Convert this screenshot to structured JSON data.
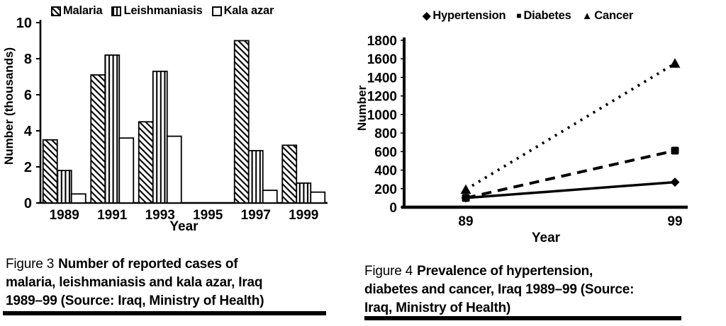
{
  "page": {
    "background": "#ffffff",
    "ink": "#000000"
  },
  "figure3": {
    "label": "Figure 3",
    "caption_line1": "Number of reported cases of",
    "caption_line2": "malaria, leishmaniasis and kala azar, Iraq",
    "caption_line3": "1989–99 (Source: Iraq, Ministry of Health)"
  },
  "figure4": {
    "label": "Figure 4",
    "caption_line1": "Prevalence of hypertension,",
    "caption_line2": "diabetes and cancer, Iraq 1989–99 (Source:",
    "caption_line3": "Iraq, Ministry of Health)"
  },
  "chart_data": [
    {
      "type": "bar",
      "title": "Number of reported cases of malaria, leishmaniasis and kala azar, Iraq 1989–99",
      "categories": [
        "1989",
        "1991",
        "1993",
        "1995",
        "1997",
        "1999"
      ],
      "series": [
        {
          "name": "Malaria",
          "pattern": "diagonal-hatch",
          "values": [
            3.5,
            7.1,
            4.5,
            null,
            9.0,
            3.2
          ]
        },
        {
          "name": "Leishmaniasis",
          "pattern": "vertical-lines",
          "values": [
            1.8,
            8.2,
            7.3,
            null,
            2.9,
            1.1
          ]
        },
        {
          "name": "Kala azar",
          "pattern": "none",
          "values": [
            0.5,
            3.6,
            3.7,
            null,
            0.7,
            0.6
          ]
        }
      ],
      "xlabel": "Year",
      "ylabel": "Number (thousands)",
      "ylim": [
        0,
        10
      ],
      "ytick_step": 2,
      "legend_position": "top",
      "grid": false
    },
    {
      "type": "line",
      "title": "Prevalence of hypertension, diabetes and cancer, Iraq 1989–99",
      "categories": [
        "89",
        "99"
      ],
      "series": [
        {
          "name": "Hypertension",
          "marker": "diamond",
          "marker_glyph": "◆",
          "line_style": "solid",
          "values": [
            100,
            270
          ]
        },
        {
          "name": "Diabetes",
          "marker": "square",
          "marker_glyph": "■",
          "line_style": "dashed",
          "values": [
            100,
            610
          ]
        },
        {
          "name": "Cancer",
          "marker": "triangle",
          "marker_glyph": "▲",
          "line_style": "dotted",
          "values": [
            190,
            1550
          ]
        }
      ],
      "xlabel": "Year",
      "ylabel": "Number",
      "ylim": [
        0,
        1800
      ],
      "ytick_step": 200,
      "legend_position": "top",
      "grid": false
    }
  ]
}
